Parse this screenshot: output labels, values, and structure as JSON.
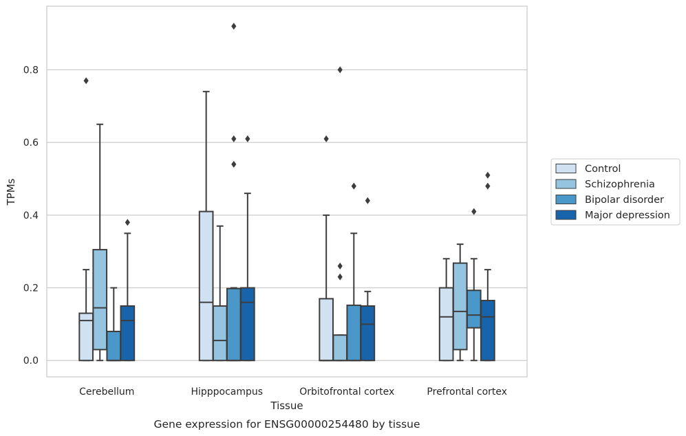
{
  "chart_data": {
    "type": "box",
    "title": "",
    "caption": "Gene expression for ENSG00000254480 by tissue",
    "xlabel": "Tissue",
    "ylabel": "TPMs",
    "ylim": [
      -0.045,
      0.975
    ],
    "yticks": [
      0.0,
      0.2,
      0.4,
      0.6,
      0.8
    ],
    "ytick_labels": [
      "0.0",
      "0.2",
      "0.4",
      "0.6",
      "0.8"
    ],
    "grid": "horizontal",
    "legend_position": "right",
    "categories": [
      "Cerebellum",
      "Hipppocampus",
      "Orbitofrontal cortex",
      "Prefrontal cortex"
    ],
    "series": [
      {
        "name": "Control",
        "color": "#d0e1f2",
        "boxes": [
          {
            "whislo": 0.0,
            "q1": 0.0,
            "med": 0.11,
            "q3": 0.13,
            "whishi": 0.25,
            "fliers": [
              0.77
            ]
          },
          {
            "whislo": 0.0,
            "q1": 0.0,
            "med": 0.16,
            "q3": 0.41,
            "whishi": 0.74,
            "fliers": []
          },
          {
            "whislo": 0.0,
            "q1": 0.0,
            "med": 0.0,
            "q3": 0.17,
            "whishi": 0.4,
            "fliers": [
              0.61
            ]
          },
          {
            "whislo": 0.0,
            "q1": 0.0,
            "med": 0.12,
            "q3": 0.2,
            "whishi": 0.28,
            "fliers": []
          }
        ]
      },
      {
        "name": "Schizophrenia",
        "color": "#94c4df",
        "boxes": [
          {
            "whislo": 0.0,
            "q1": 0.03,
            "med": 0.145,
            "q3": 0.305,
            "whishi": 0.65,
            "fliers": []
          },
          {
            "whislo": 0.0,
            "q1": 0.0,
            "med": 0.055,
            "q3": 0.15,
            "whishi": 0.37,
            "fliers": []
          },
          {
            "whislo": 0.0,
            "q1": 0.0,
            "med": 0.0,
            "q3": 0.07,
            "whishi": 0.07,
            "fliers": [
              0.8,
              0.26,
              0.23
            ]
          },
          {
            "whislo": 0.0,
            "q1": 0.03,
            "med": 0.135,
            "q3": 0.268,
            "whishi": 0.32,
            "fliers": []
          }
        ]
      },
      {
        "name": "Bipolar disorder",
        "color": "#4a98c9",
        "boxes": [
          {
            "whislo": 0.0,
            "q1": 0.0,
            "med": 0.0,
            "q3": 0.08,
            "whishi": 0.2,
            "fliers": []
          },
          {
            "whislo": 0.0,
            "q1": 0.0,
            "med": 0.0,
            "q3": 0.198,
            "whishi": 0.2,
            "fliers": [
              0.92,
              0.61,
              0.54
            ]
          },
          {
            "whislo": 0.0,
            "q1": 0.0,
            "med": 0.0,
            "q3": 0.152,
            "whishi": 0.35,
            "fliers": [
              0.48
            ]
          },
          {
            "whislo": 0.0,
            "q1": 0.09,
            "med": 0.125,
            "q3": 0.193,
            "whishi": 0.28,
            "fliers": [
              0.41
            ]
          }
        ]
      },
      {
        "name": "Major depression",
        "color": "#1764ab",
        "boxes": [
          {
            "whislo": 0.0,
            "q1": 0.0,
            "med": 0.11,
            "q3": 0.15,
            "whishi": 0.35,
            "fliers": [
              0.38
            ]
          },
          {
            "whislo": 0.0,
            "q1": 0.0,
            "med": 0.16,
            "q3": 0.2,
            "whishi": 0.46,
            "fliers": [
              0.61
            ]
          },
          {
            "whislo": 0.0,
            "q1": 0.0,
            "med": 0.1,
            "q3": 0.15,
            "whishi": 0.19,
            "fliers": [
              0.44
            ]
          },
          {
            "whislo": 0.0,
            "q1": 0.0,
            "med": 0.12,
            "q3": 0.165,
            "whishi": 0.25,
            "fliers": [
              0.51,
              0.48
            ]
          }
        ]
      }
    ]
  }
}
